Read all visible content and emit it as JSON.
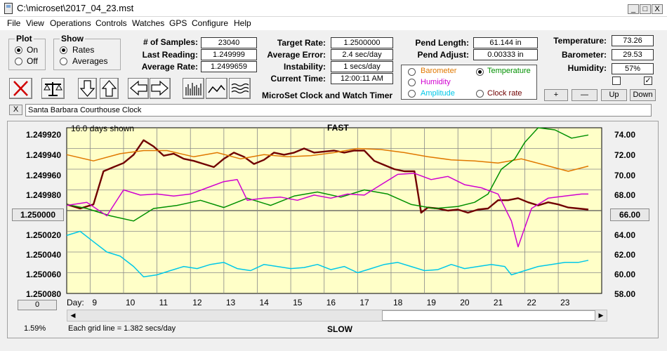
{
  "window": {
    "title": "C:\\microset\\2017_04_23.mst",
    "min": "_",
    "max": "□",
    "close": "X"
  },
  "menu": [
    "File",
    "View",
    "Operations",
    "Controls",
    "Watches",
    "GPS",
    "Configure",
    "Help"
  ],
  "plot": {
    "title": "Plot",
    "on": "On",
    "off": "Off"
  },
  "show": {
    "title": "Show",
    "rates": "Rates",
    "averages": "Averages"
  },
  "stats": {
    "samples_label": "# of Samples:",
    "samples": "23040",
    "last_label": "Last Reading:",
    "last": "1.249999",
    "avg_label": "Average Rate:",
    "avg": "1.2499659",
    "target_label": "Target Rate:",
    "target": "1.2500000",
    "avgerr_label": "Average Error:",
    "avgerr": "2.4 sec/day",
    "instab_label": "Instability:",
    "instab": "1 secs/day",
    "time_label": "Current Time:",
    "time": "12:00:11 AM",
    "pendlen_label": "Pend Length:",
    "pendlen": "61.144 in",
    "pendadj_label": "Pend Adjust:",
    "pendadj": "0.00333 in",
    "temp_label": "Temperature:",
    "temp": "73.26",
    "baro_label": "Barometer:",
    "baro": "29.53",
    "hum_label": "Humidity:",
    "hum": "57%"
  },
  "app_name": "MicroSet Clock and Watch Timer",
  "legend": {
    "barometer": "Barometer",
    "temperature": "Temperature",
    "humidity": "Humidity",
    "amplitude": "Amplitude",
    "clockrate": "Clock rate",
    "colors": {
      "barometer": "#e07800",
      "temperature": "#009000",
      "humidity": "#d000d0",
      "amplitude": "#00c8e8",
      "clockrate": "#700000"
    }
  },
  "buttons": {
    "plus": "+",
    "minus": "—",
    "up": "Up",
    "down": "Down"
  },
  "clock_name": "Santa Barbara Courthouse Clock",
  "clock_close": "X",
  "graph": {
    "days_shown": "16.0 days shown",
    "fast": "FAST",
    "slow": "SLOW",
    "grid_note": "Each grid line = 1.382 secs/day",
    "percent": "1.59%",
    "center_btn": "1.250000",
    "right_btn": "66.00",
    "zero_btn": "0",
    "day_label": "Day:",
    "left_ticks": [
      "1.249920",
      "1.249940",
      "1.249960",
      "1.249980",
      "",
      "1.250020",
      "1.250040",
      "1.250060",
      "1.250080"
    ],
    "right_ticks": [
      "74.00",
      "72.00",
      "70.00",
      "68.00",
      "",
      "64.00",
      "62.00",
      "60.00",
      "58.00"
    ],
    "days": [
      "9",
      "10",
      "11",
      "12",
      "13",
      "14",
      "15",
      "16",
      "17",
      "18",
      "19",
      "20",
      "21",
      "22",
      "23"
    ]
  },
  "chart_data": {
    "type": "line",
    "x_label": "Day:",
    "x_range": [
      8.2,
      24.2
    ],
    "y_left_range": [
      1.24992,
      1.25008
    ],
    "y_right_range": [
      58,
      74
    ],
    "series": [
      {
        "name": "Clock rate",
        "color": "#700000",
        "x": [
          8.2,
          8.6,
          9.0,
          9.3,
          9.6,
          9.9,
          10.2,
          10.5,
          10.8,
          11.1,
          11.4,
          11.7,
          12.0,
          12.3,
          12.6,
          12.9,
          13.2,
          13.5,
          13.8,
          14.1,
          14.4,
          14.7,
          15.0,
          15.3,
          15.6,
          15.9,
          16.2,
          16.5,
          16.8,
          17.1,
          17.4,
          17.7,
          18.0,
          18.3,
          18.6,
          18.8,
          19.0,
          19.3,
          19.6,
          19.9,
          20.2,
          20.5,
          20.8,
          21.1,
          21.4,
          21.7,
          22.0,
          22.3,
          22.6,
          22.9,
          23.2,
          23.5,
          23.8
        ],
        "y": [
          1.249994,
          1.249998,
          1.249994,
          1.249962,
          1.249958,
          1.249954,
          1.249946,
          1.249932,
          1.249938,
          1.249947,
          1.249945,
          1.24995,
          1.249952,
          1.249955,
          1.249958,
          1.24995,
          1.249944,
          1.249948,
          1.249955,
          1.249951,
          1.249944,
          1.249946,
          1.249944,
          1.24994,
          1.249944,
          1.249943,
          1.249942,
          1.249944,
          1.249942,
          1.249942,
          1.249952,
          1.249956,
          1.24996,
          1.249962,
          1.249962,
          1.250002,
          1.249997,
          1.249998,
          1.25,
          1.249999,
          1.250002,
          1.249999,
          1.249998,
          1.24999,
          1.24999,
          1.249988,
          1.249992,
          1.249995,
          1.249992,
          1.249994,
          1.249997,
          1.249998,
          1.249999
        ]
      },
      {
        "name": "Barometer",
        "color": "#e07800",
        "x": [
          8.2,
          9.0,
          9.8,
          10.5,
          11.2,
          12.0,
          12.7,
          13.4,
          14.1,
          14.8,
          15.5,
          16.2,
          16.9,
          17.6,
          18.3,
          19.0,
          19.7,
          20.4,
          21.1,
          21.8,
          22.5,
          23.2,
          23.8
        ],
        "y": [
          71.4,
          70.8,
          71.5,
          71.8,
          71.8,
          71.2,
          71.6,
          71.0,
          71.4,
          71.2,
          71.3,
          71.6,
          72.0,
          71.9,
          71.6,
          71.2,
          70.9,
          70.8,
          70.6,
          71.0,
          70.4,
          69.8,
          70.3
        ]
      },
      {
        "name": "Temperature",
        "color": "#009000",
        "x": [
          8.2,
          8.8,
          9.5,
          10.2,
          10.8,
          11.5,
          12.2,
          12.9,
          13.6,
          14.3,
          15.0,
          15.7,
          16.4,
          17.1,
          17.8,
          18.5,
          19.2,
          19.9,
          20.4,
          20.8,
          21.2,
          21.6,
          21.9,
          22.3,
          22.8,
          23.3,
          23.8
        ],
        "y": [
          66.6,
          66.2,
          65.5,
          65.0,
          66.2,
          66.5,
          67.0,
          66.3,
          67.2,
          66.5,
          67.4,
          67.8,
          67.3,
          68.0,
          67.6,
          66.6,
          66.2,
          66.4,
          66.8,
          67.6,
          70.0,
          71.0,
          72.6,
          74.0,
          73.8,
          73.0,
          73.3
        ]
      },
      {
        "name": "Humidity",
        "color": "#d000d0",
        "x": [
          8.2,
          8.8,
          9.4,
          9.9,
          10.4,
          10.9,
          11.4,
          11.9,
          12.4,
          12.9,
          13.3,
          13.6,
          14.1,
          14.6,
          15.1,
          15.6,
          16.1,
          16.6,
          17.1,
          17.6,
          18.1,
          18.6,
          19.1,
          19.6,
          20.1,
          20.6,
          21.1,
          21.5,
          21.7,
          22.1,
          22.6,
          23.1,
          23.6,
          23.8
        ],
        "y": [
          66.5,
          66.8,
          65.5,
          68.0,
          67.5,
          67.6,
          67.4,
          67.6,
          68.2,
          68.8,
          69.0,
          67.0,
          67.2,
          67.3,
          67.0,
          67.5,
          67.2,
          67.6,
          67.5,
          68.5,
          69.5,
          69.6,
          69.0,
          69.3,
          68.5,
          68.2,
          67.6,
          65.0,
          62.5,
          66.2,
          67.2,
          67.4,
          67.6,
          67.6
        ]
      },
      {
        "name": "Amplitude",
        "color": "#00c8e8",
        "x": [
          8.2,
          8.6,
          9.0,
          9.4,
          9.8,
          10.2,
          10.5,
          10.9,
          11.3,
          11.7,
          12.1,
          12.5,
          12.9,
          13.3,
          13.7,
          14.1,
          14.5,
          14.9,
          15.3,
          15.7,
          16.1,
          16.5,
          16.9,
          17.3,
          17.7,
          18.1,
          18.5,
          18.9,
          19.3,
          19.7,
          20.1,
          20.5,
          20.9,
          21.3,
          21.5,
          21.9,
          22.3,
          22.7,
          23.1,
          23.5,
          23.8
        ],
        "y": [
          63.6,
          64.0,
          63.0,
          62.0,
          61.6,
          60.6,
          59.6,
          59.8,
          60.2,
          60.6,
          60.4,
          60.8,
          61.0,
          60.4,
          60.2,
          60.8,
          60.6,
          60.4,
          60.5,
          60.8,
          60.3,
          60.6,
          60.0,
          60.4,
          60.8,
          61.0,
          60.6,
          60.2,
          60.3,
          60.8,
          60.4,
          60.6,
          60.8,
          60.6,
          59.8,
          60.2,
          60.6,
          60.8,
          61.0,
          61.0,
          61.2
        ]
      }
    ]
  }
}
